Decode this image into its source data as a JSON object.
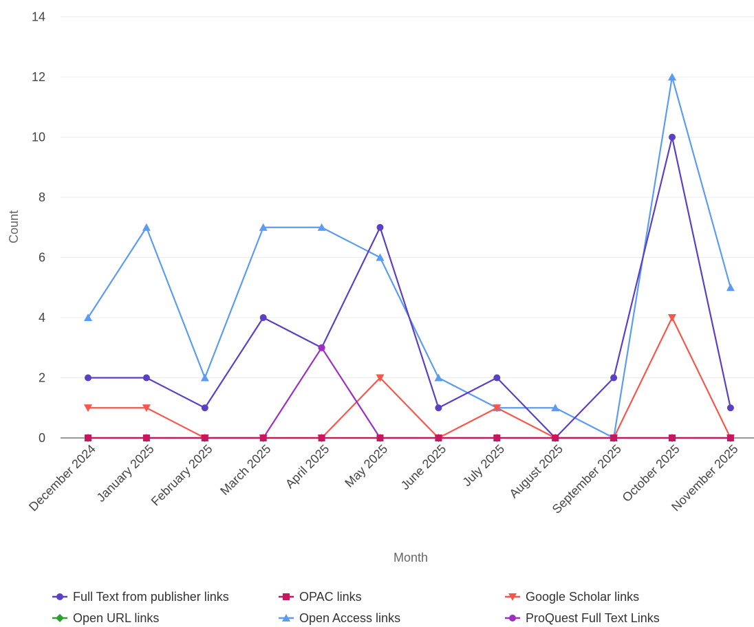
{
  "chart_data": {
    "type": "line",
    "title": "",
    "xlabel": "Month",
    "ylabel": "Count",
    "ylim": [
      0,
      14
    ],
    "yticks": [
      0,
      2,
      4,
      6,
      8,
      10,
      12,
      14
    ],
    "grid": true,
    "legend_position": "bottom",
    "categories": [
      "December 2024",
      "January 2025",
      "February 2025",
      "March 2025",
      "April 2025",
      "May 2025",
      "June 2025",
      "July 2025",
      "August 2025",
      "September 2025",
      "October 2025",
      "November 2025"
    ],
    "series": [
      {
        "name": "Full Text from publisher links",
        "color": "#5b3fc4",
        "marker": "circle",
        "values": [
          2,
          2,
          1,
          4,
          3,
          7,
          1,
          2,
          0,
          2,
          10,
          1
        ]
      },
      {
        "name": "Open URL links",
        "color": "#2ca02c",
        "marker": "diamond",
        "values": [
          0,
          0,
          0,
          0,
          0,
          0,
          0,
          0,
          0,
          0,
          0,
          0
        ]
      },
      {
        "name": "OPAC links",
        "color": "#c8175f",
        "marker": "square",
        "values": [
          0,
          0,
          0,
          0,
          0,
          0,
          0,
          0,
          0,
          0,
          0,
          0
        ]
      },
      {
        "name": "Open Access links",
        "color": "#5b9cf2",
        "marker": "triangle-up",
        "values": [
          4,
          7,
          2,
          7,
          7,
          6,
          2,
          1,
          1,
          0,
          12,
          5
        ]
      },
      {
        "name": "Google Scholar links",
        "color": "#f7574b",
        "marker": "triangle-down",
        "values": [
          1,
          1,
          0,
          0,
          0,
          2,
          0,
          1,
          0,
          0,
          4,
          0
        ]
      },
      {
        "name": "ProQuest Full Text Links",
        "color": "#9c2fc2",
        "marker": "circle",
        "values": [
          0,
          0,
          0,
          0,
          3,
          0,
          0,
          0,
          0,
          0,
          0,
          0
        ]
      }
    ]
  }
}
